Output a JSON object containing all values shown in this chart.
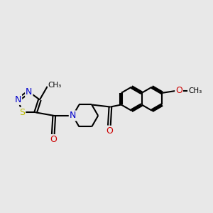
{
  "bg_color": "#e8e8e8",
  "bond_color": "#000000",
  "atom_colors": {
    "N": "#0000cc",
    "O": "#cc0000",
    "S": "#bbbb00",
    "C": "#000000"
  },
  "line_width": 1.5,
  "fig_size": [
    3.0,
    3.0
  ],
  "dpi": 100
}
